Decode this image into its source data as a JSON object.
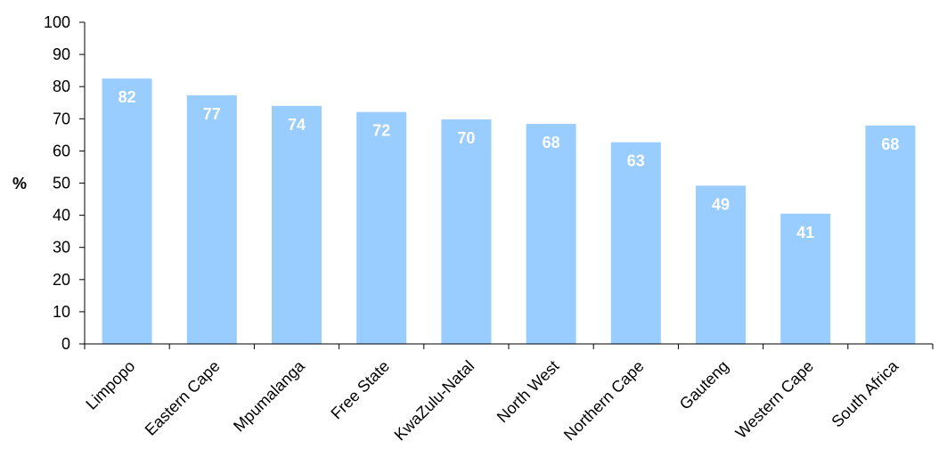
{
  "chart_data": {
    "type": "bar",
    "title": "",
    "xlabel": "",
    "ylabel": "%",
    "ylim": [
      0,
      100
    ],
    "yticks": [
      0,
      10,
      20,
      30,
      40,
      50,
      60,
      70,
      80,
      90,
      100
    ],
    "grid": false,
    "legend": "none",
    "bar_color": "#99ccff",
    "label_color": "#ffffff",
    "categories": [
      "Limpopo",
      "Eastern Cape",
      "Mpumalanga",
      "Free State",
      "KwaZulu-Natal",
      "North West",
      "Northern Cape",
      "Gauteng",
      "Western Cape",
      "South Africa"
    ],
    "values": [
      82.5,
      77.3,
      74.0,
      72.1,
      69.8,
      68.4,
      62.7,
      49.2,
      40.5,
      67.9
    ],
    "data_labels": [
      "82",
      "77",
      "74",
      "72",
      "70",
      "68",
      "63",
      "49",
      "41",
      "68"
    ]
  }
}
